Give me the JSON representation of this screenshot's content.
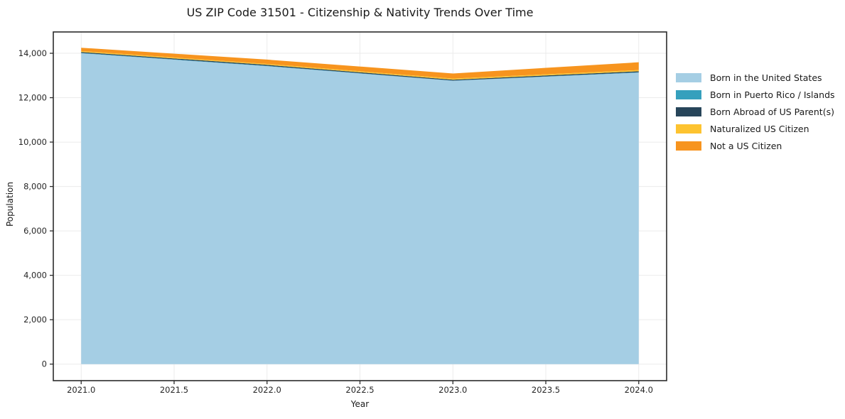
{
  "chart_data": {
    "type": "area",
    "stacked": true,
    "title": "US ZIP Code 31501 - Citizenship & Nativity Trends Over Time",
    "xlabel": "Year",
    "ylabel": "Population",
    "grid": true,
    "legend_position": "right-outside",
    "x": [
      2021,
      2022,
      2023,
      2024
    ],
    "series": [
      {
        "name": "Born in the United States",
        "color": "#a5cee4",
        "values": [
          14000,
          13420,
          12760,
          13130
        ]
      },
      {
        "name": "Born in Puerto Rico / Islands",
        "color": "#35a0bd",
        "values": [
          15,
          15,
          10,
          15
        ]
      },
      {
        "name": "Born Abroad of US Parent(s)",
        "color": "#27455a",
        "values": [
          40,
          45,
          40,
          45
        ]
      },
      {
        "name": "Naturalized US Citizen",
        "color": "#fdc330",
        "values": [
          45,
          40,
          50,
          55
        ]
      },
      {
        "name": "Not a US Citizen",
        "color": "#f7941e",
        "values": [
          150,
          195,
          230,
          350
        ]
      }
    ],
    "xlim": [
      2020.85,
      2024.15
    ],
    "ylim": [
      -745,
      14960
    ],
    "xticks": {
      "positions": [
        2021.0,
        2021.5,
        2022.0,
        2022.5,
        2023.0,
        2023.5,
        2024.0
      ],
      "labels": [
        "2021.0",
        "2021.5",
        "2022.0",
        "2022.5",
        "2023.0",
        "2023.5",
        "2024.0"
      ]
    },
    "yticks": {
      "positions": [
        0,
        2000,
        4000,
        6000,
        8000,
        10000,
        12000,
        14000
      ],
      "labels": [
        "0",
        "2,000",
        "4,000",
        "6,000",
        "8,000",
        "10,000",
        "12,000",
        "14,000"
      ]
    },
    "colors": {
      "grid": "#ebebeb",
      "spine": "#2b2b2b",
      "tick_text": "#262626"
    }
  }
}
